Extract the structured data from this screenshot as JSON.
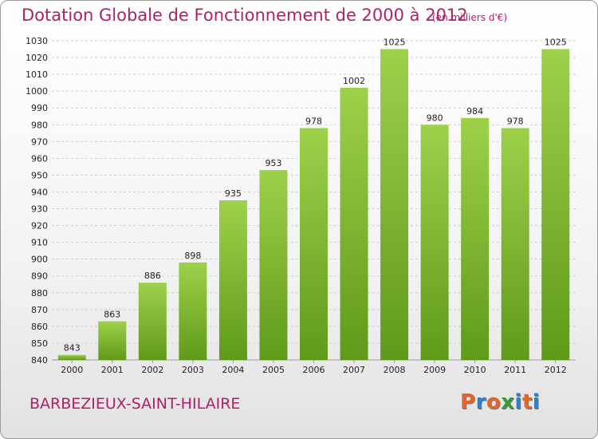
{
  "title": "Dotation Globale de Fonctionnement de 2000 à 2012",
  "unit_note": "(en milliers d'€)",
  "commune": "BARBEZIEUX-SAINT-HILAIRE",
  "logo": {
    "text": "Proxiti",
    "letters": [
      "P",
      "r",
      "o",
      "x",
      "i",
      "t",
      "i"
    ],
    "colors": [
      "#e0662a",
      "#2e7fc4",
      "#e0662a",
      "#3a9a3a",
      "#2e7fc4",
      "#e0662a",
      "#2e7fc4"
    ]
  },
  "colors": {
    "title": "#b01f6a",
    "bar_light": "#9ed14a",
    "bar_dark": "#5f9a1a",
    "grid": "#cfcfcf",
    "axis_text": "#222222"
  },
  "chart_data": {
    "type": "bar",
    "title": "Dotation Globale de Fonctionnement de 2000 à 2012",
    "xlabel": "",
    "ylabel": "",
    "categories": [
      "2000",
      "2001",
      "2002",
      "2003",
      "2004",
      "2005",
      "2006",
      "2007",
      "2008",
      "2009",
      "2010",
      "2011",
      "2012"
    ],
    "values": [
      843,
      863,
      886,
      898,
      935,
      953,
      978,
      1002,
      1025,
      980,
      984,
      978,
      1025
    ],
    "ylim": [
      840,
      1030
    ],
    "yticks": [
      840,
      850,
      860,
      870,
      880,
      890,
      900,
      910,
      920,
      930,
      940,
      950,
      960,
      970,
      980,
      990,
      1000,
      1010,
      1020,
      1030
    ],
    "grid": true
  }
}
